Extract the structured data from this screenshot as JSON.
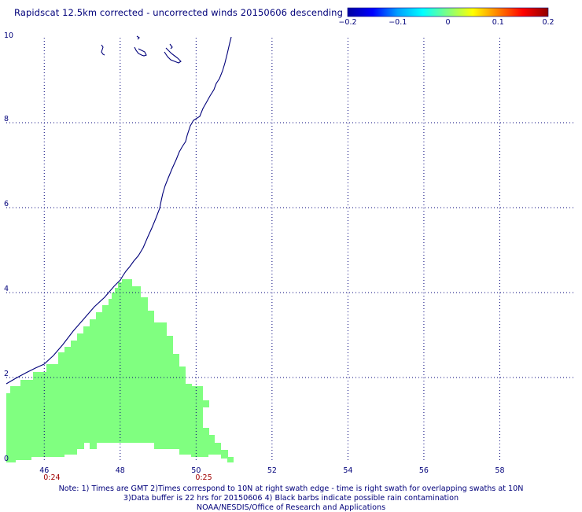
{
  "title": "Rapidscat 12.5km corrected - uncorrected winds 20150606 descending",
  "colorbar": {
    "ticks": [
      {
        "value": -0.2,
        "label": "−0.2"
      },
      {
        "value": -0.1,
        "label": "−0.1"
      },
      {
        "value": 0,
        "label": "0"
      },
      {
        "value": 0.1,
        "label": "0.1"
      },
      {
        "value": 0.2,
        "label": "0.2"
      }
    ],
    "stops": [
      "#0000a0",
      "#0000ff",
      "#00a0ff",
      "#00ffff",
      "#80ff80",
      "#ffff00",
      "#ff8000",
      "#ff0000",
      "#900000"
    ]
  },
  "map": {
    "lon_range": [
      45.0,
      60.0
    ],
    "lat_range": [
      0,
      10
    ],
    "lon_ticks": [
      46,
      48,
      50,
      52,
      54,
      56,
      58
    ],
    "lat_ticks": [
      0,
      2,
      4,
      6,
      8,
      10
    ],
    "lon_tick_labels": [
      "46",
      "48",
      "50",
      "52",
      "54",
      "56",
      "58"
    ],
    "lat_tick_labels": [
      "0",
      "2",
      "4",
      "6",
      "8",
      "10"
    ],
    "grid": "dotted",
    "swath_time_labels": [
      {
        "lon": 46.2,
        "text": "0:24"
      },
      {
        "lon": 50.2,
        "text": "0:25"
      }
    ],
    "swath_fill_color": "#80ff80",
    "coast_color": "#00007a"
  },
  "notes": [
    "Note: 1) Times are GMT 2)Times correspond to 10N at right swath edge - time is right swath for overlapping swaths at 10N",
    "3)Data buffer is 22 hrs for 20150606 4) Black barbs indicate possible rain contamination",
    "NOAA/NESDIS/Office of Research and Applications"
  ]
}
